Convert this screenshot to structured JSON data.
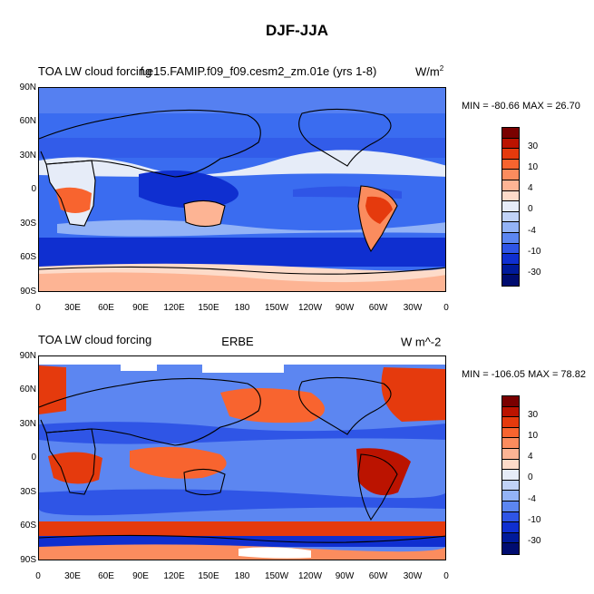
{
  "figure_title": "DJF-JJA",
  "panels": [
    {
      "left_title": "TOA LW cloud forcing",
      "center_title": "f.e15.FAMIP.f09_f09.cesm2_zm.01e (yrs 1-8)",
      "units_main": "W/m",
      "units_sup": "2",
      "minmax": "MIN = -80.66 MAX =  26.70",
      "colorbar_labels": [
        "30",
        "10",
        "4",
        "0",
        "-4",
        "-10",
        "-30"
      ]
    },
    {
      "left_title": "TOA LW cloud forcing",
      "center_title": "ERBE",
      "units_main": "W m^-2",
      "units_sup": "",
      "minmax": "MIN = -106.05 MAX =  78.82",
      "colorbar_labels": [
        "30",
        "10",
        "4",
        "0",
        "-4",
        "-10",
        "-30"
      ]
    }
  ],
  "lat_labels": [
    "90N",
    "60N",
    "30N",
    "0",
    "30S",
    "60S",
    "90S"
  ],
  "lon_labels": [
    "0",
    "30E",
    "60E",
    "90E",
    "120E",
    "150E",
    "180",
    "150W",
    "120W",
    "90W",
    "60W",
    "30W",
    "0"
  ],
  "colors": {
    "cb": [
      "#7a0000",
      "#bb1300",
      "#e53a0d",
      "#f8642f",
      "#fb8c5e",
      "#fdb494",
      "#fddbc9",
      "#e6ecf8",
      "#c1d3f7",
      "#93b3f6",
      "#5c86f1",
      "#2f55e6",
      "#0f2fd0",
      "#001a9a",
      "#000c70"
    ],
    "ocean_mid": "#3a6cf0",
    "ocean_pale": "#b6ccf8",
    "land_red": "#e8531d",
    "warm_pale": "#fbd3bc",
    "coast": "#000000"
  }
}
